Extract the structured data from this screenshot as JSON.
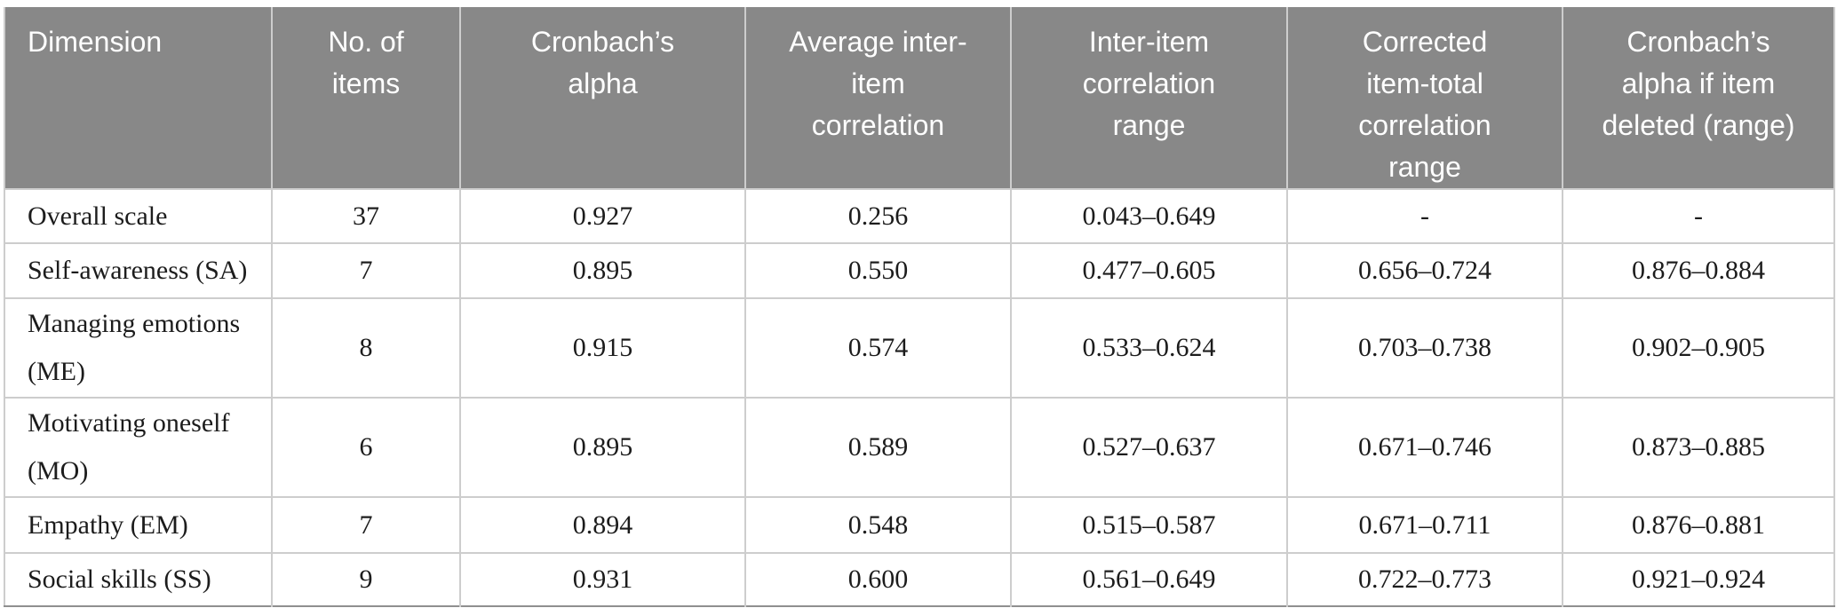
{
  "table": {
    "columns": [
      {
        "label": "Dimension"
      },
      {
        "label": "No. of\nitems"
      },
      {
        "label": "Cronbach’s\nalpha"
      },
      {
        "label": "Average inter-\nitem\ncorrelation"
      },
      {
        "label": "Inter-item\ncorrelation\nrange"
      },
      {
        "label": "Corrected\nitem-total\ncorrelation\nrange"
      },
      {
        "label": "Cronbach’s\nalpha if item\ndeleted (range)"
      }
    ],
    "rows": [
      [
        "Overall scale",
        "37",
        "0.927",
        "0.256",
        "0.043–0.649",
        "-",
        "-"
      ],
      [
        "Self-awareness (SA)",
        "7",
        "0.895",
        "0.550",
        "0.477–0.605",
        "0.656–0.724",
        "0.876–0.884"
      ],
      [
        "Managing emotions (ME)",
        "8",
        "0.915",
        "0.574",
        "0.533–0.624",
        "0.703–0.738",
        "0.902–0.905"
      ],
      [
        "Motivating oneself (MO)",
        "6",
        "0.895",
        "0.589",
        "0.527–0.637",
        "0.671–0.746",
        "0.873–0.885"
      ],
      [
        "Empathy (EM)",
        "7",
        "0.894",
        "0.548",
        "0.515–0.587",
        "0.671–0.711",
        "0.876–0.881"
      ],
      [
        "Social skills (SS)",
        "9",
        "0.931",
        "0.600",
        "0.561–0.649",
        "0.722–0.773",
        "0.921–0.924"
      ]
    ],
    "colors": {
      "header_bg": "#888888",
      "header_text": "#ffffff",
      "body_text": "#1c1c1c",
      "grid_line": "#cdcdcd",
      "bottom_border": "#8f8f8f"
    }
  }
}
